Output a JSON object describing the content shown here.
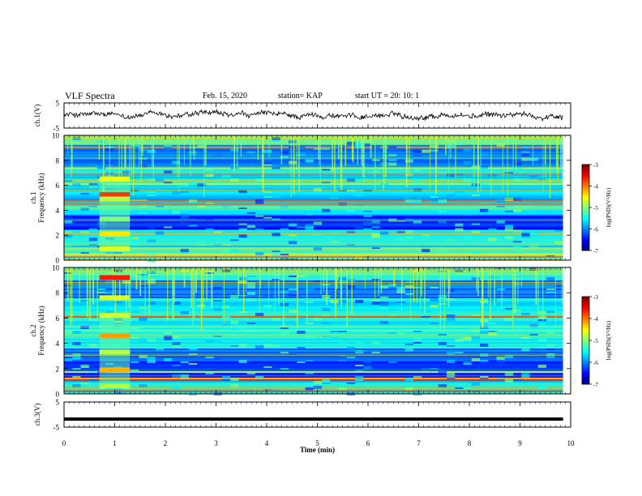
{
  "header": {
    "title": "VLF Spectra",
    "date": "Feb. 15, 2020",
    "station": "station= KAP",
    "start": "start  UT =   20: 10: 1"
  },
  "chart_data": [
    {
      "type": "line",
      "panel": "ch1-waveform",
      "ylabel": "ch.1(V)",
      "ylim": [
        -5,
        5
      ],
      "yticks": [
        "5",
        "-5"
      ],
      "xlim": [
        0,
        9.85
      ],
      "note_color": "#000000"
    },
    {
      "type": "heatmap",
      "panel": "ch1-spectrogram",
      "ylabel": "ch.1\nFrequency  (kHz)",
      "ylim": [
        0,
        10
      ],
      "yticks": [
        "0",
        "2",
        "4",
        "6",
        "8",
        "10"
      ],
      "xlim": [
        0,
        9.85
      ],
      "colorbar": {
        "label": "log(PSD)(V²/Hz)",
        "range": [
          -7,
          -3
        ],
        "ticks": [
          "-3",
          "-4",
          "-5",
          "-6",
          "-7"
        ]
      }
    },
    {
      "type": "heatmap",
      "panel": "ch2-spectrogram",
      "ylabel": "ch.2\nFrequency  (kHz)",
      "ylim": [
        0,
        10
      ],
      "yticks": [
        "0",
        "2",
        "4",
        "6",
        "8",
        "10"
      ],
      "xlim": [
        0,
        9.85
      ],
      "colorbar": {
        "label": "log(PSD)(V²/Hz)",
        "range": [
          -7,
          -3
        ],
        "ticks": [
          "-3",
          "-4",
          "-5",
          "-6",
          "-7"
        ]
      }
    },
    {
      "type": "line",
      "panel": "ch3-waveform",
      "ylabel": "ch.3(V)",
      "ylim": [
        -5,
        5
      ],
      "yticks": [
        "5",
        "-5"
      ],
      "xlim": [
        0,
        9.85
      ],
      "y_constant": -1.8
    }
  ],
  "xaxis": {
    "label": "Time  (min)",
    "ticks": [
      "0",
      "1",
      "2",
      "3",
      "4",
      "5",
      "6",
      "7",
      "8",
      "9",
      "10"
    ],
    "range": [
      0,
      10
    ]
  },
  "colors": {
    "jet": [
      "#00007f",
      "#0000ff",
      "#007fff",
      "#00ffff",
      "#7fff7f",
      "#ffff00",
      "#ff7f00",
      "#ff0000",
      "#7f0000"
    ]
  }
}
